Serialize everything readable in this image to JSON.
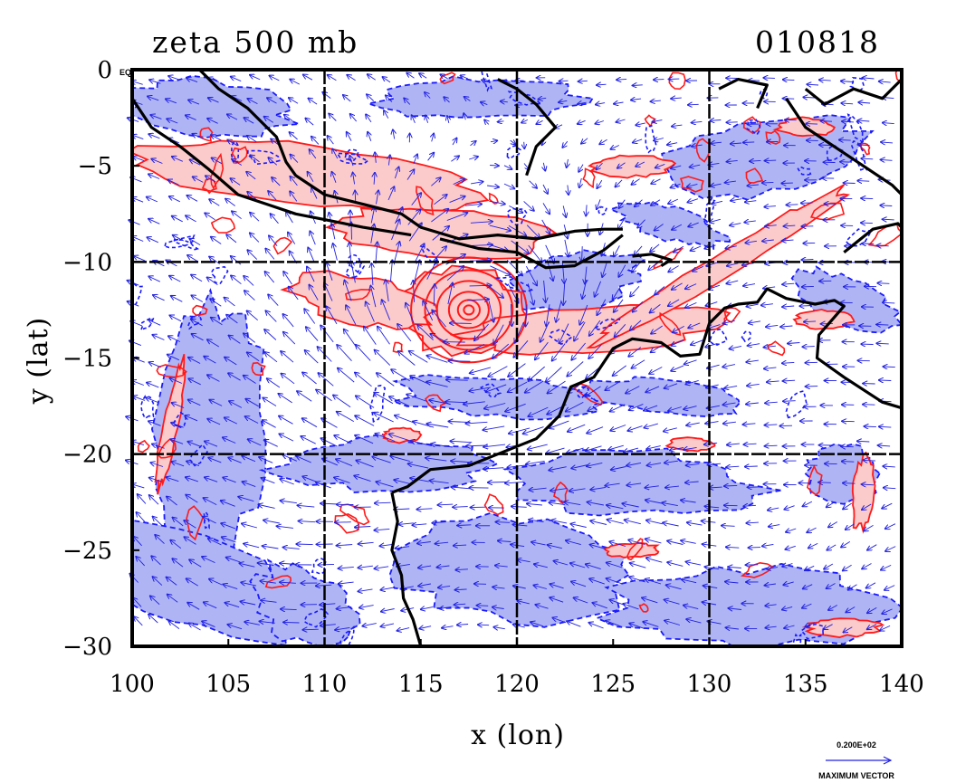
{
  "chart_data": {
    "type": "map-contour-vector",
    "title": "zeta 500 mb",
    "date_label": "010818",
    "xlabel": "x (lon)",
    "ylabel": "y (lat)",
    "xlim": [
      100,
      140
    ],
    "ylim": [
      -30,
      0
    ],
    "x_ticks": [
      "100",
      "105",
      "110",
      "115",
      "120",
      "125",
      "130",
      "135",
      "140"
    ],
    "y_ticks": [
      "0",
      "−5",
      "−10",
      "−15",
      "−20",
      "−25",
      "−30"
    ],
    "y_tick_values": [
      0,
      -5,
      -10,
      -15,
      -20,
      -25,
      -30
    ],
    "x_tick_values": [
      100,
      105,
      110,
      115,
      120,
      125,
      130,
      135,
      140
    ],
    "gridlines_lon": [
      110,
      120,
      130
    ],
    "gridlines_lat": [
      -10,
      -20
    ],
    "corner_label": "EQ",
    "vector_legend": {
      "magnitude_label": "0.200E+02",
      "caption": "MAXIMUM VECTOR"
    },
    "colors": {
      "positive_fill": "#fbcaca",
      "positive_contour": "#ff1a1a",
      "negative_fill": "#aeb4f4",
      "negative_contour": "#1a1aff",
      "vectors": "#2020e0",
      "coastline": "#000000"
    },
    "features": [
      {
        "name": "cyclone vorticity maximum",
        "lon": 117.5,
        "lat": -12.5
      }
    ]
  }
}
